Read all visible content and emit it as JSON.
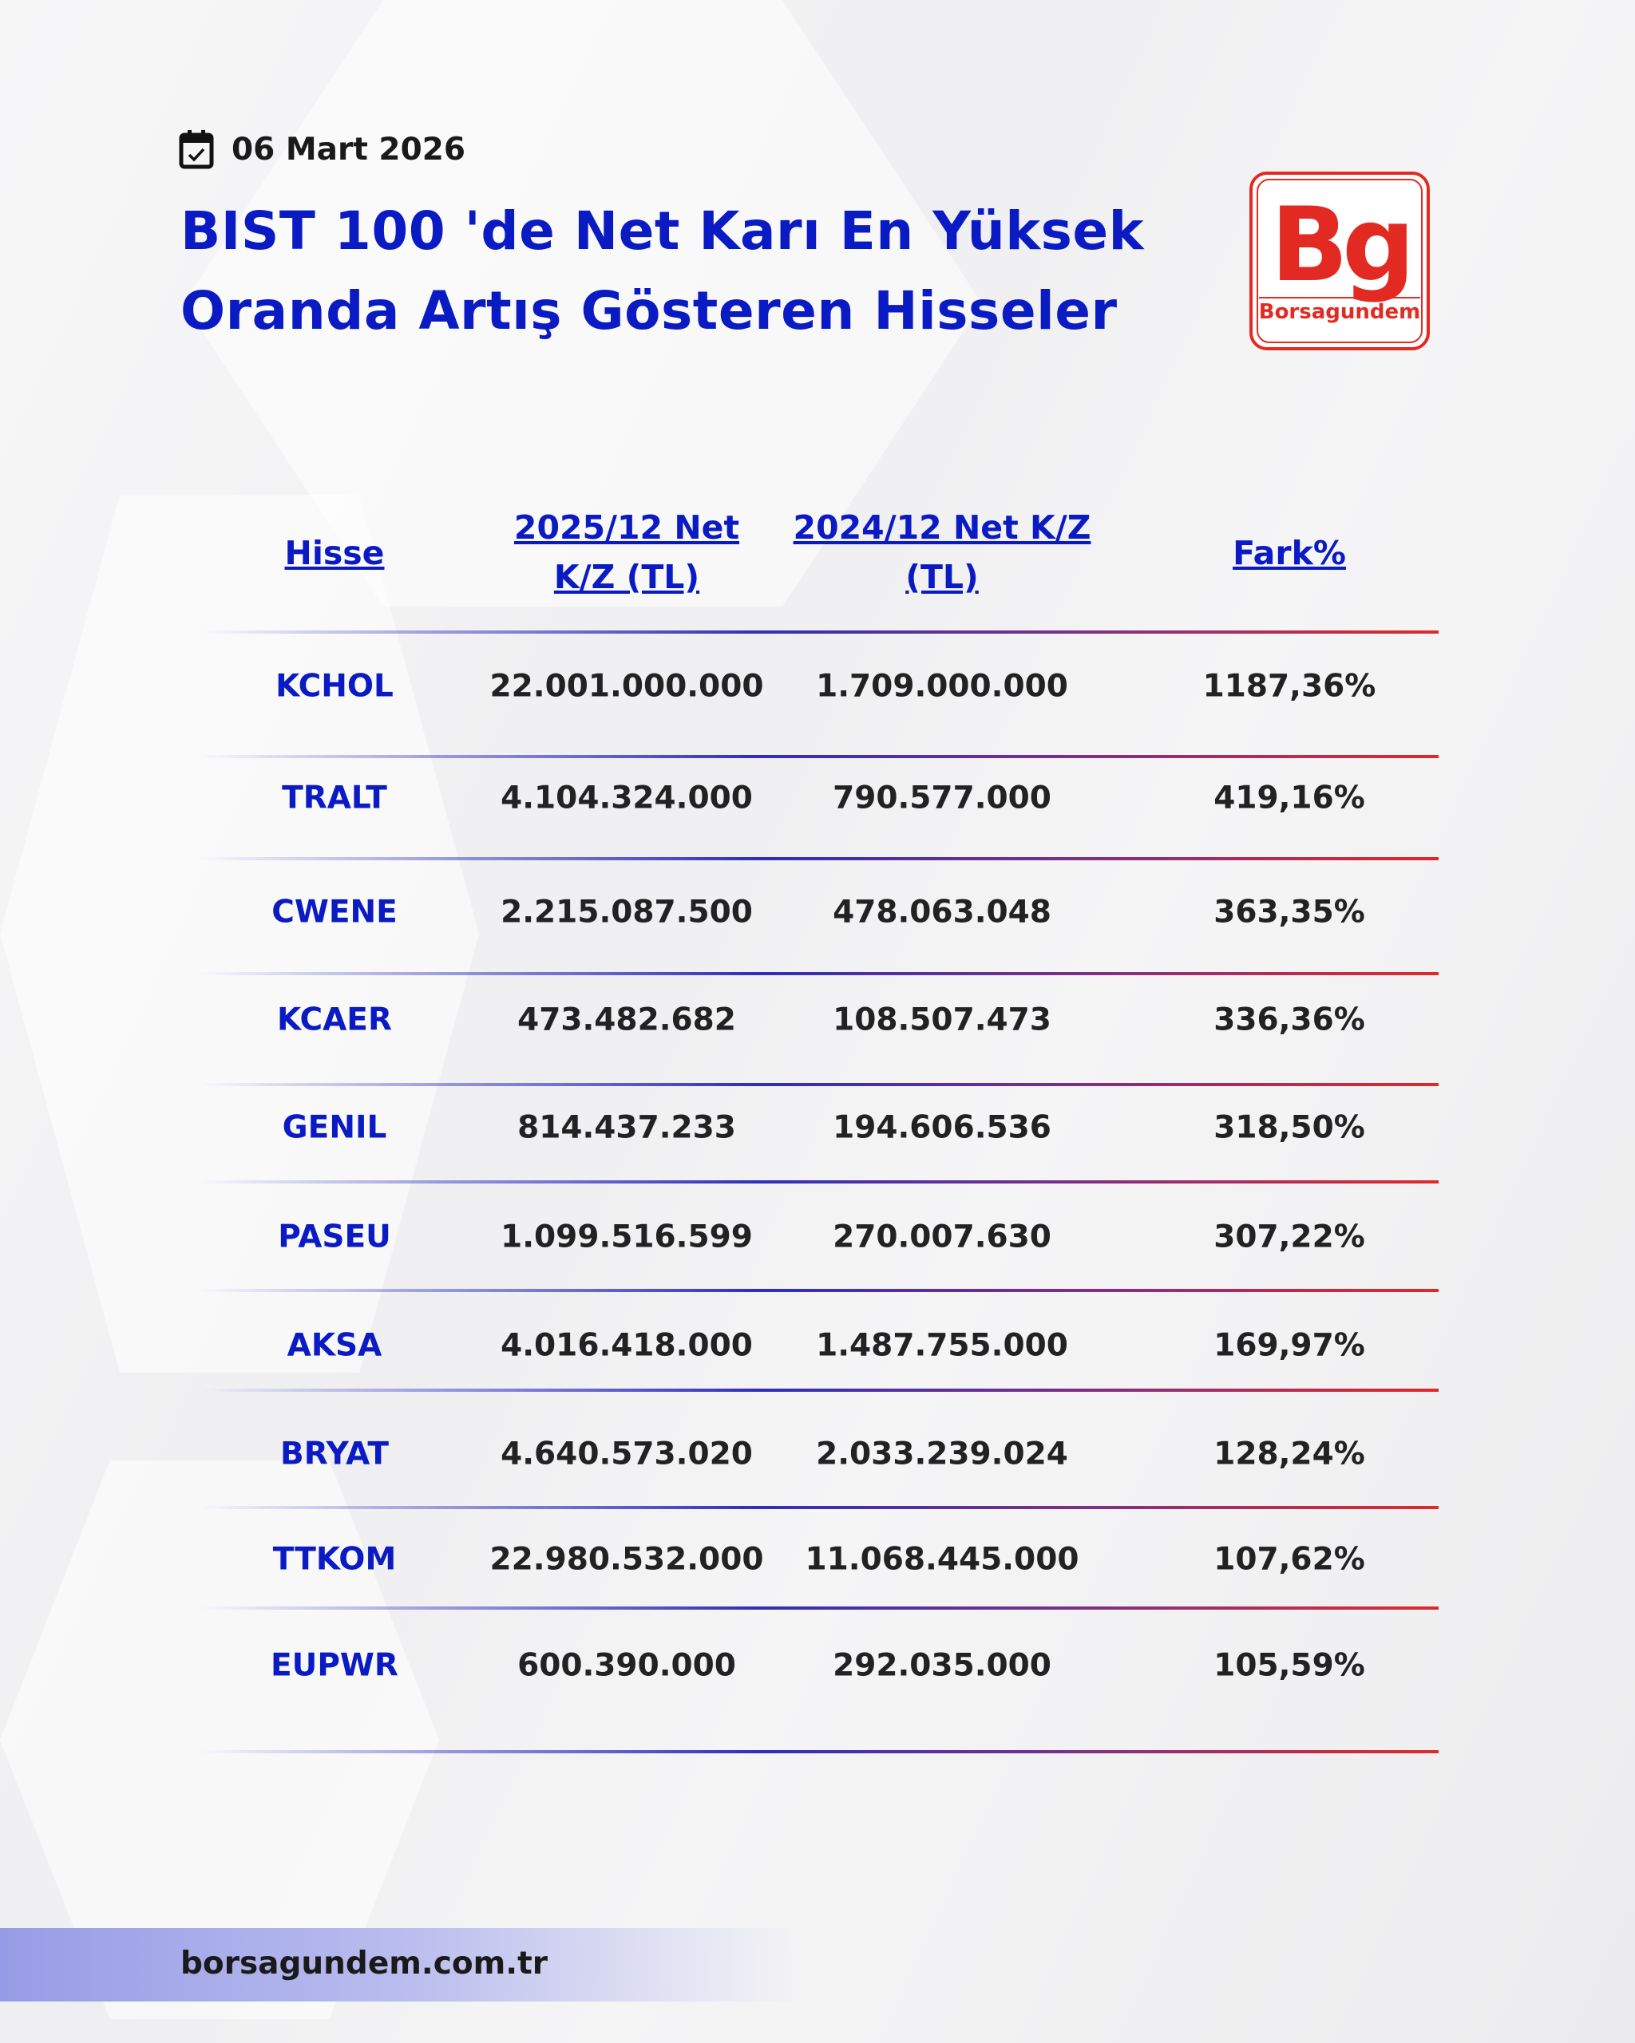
{
  "date": "06 Mart 2026",
  "title_line1": "BIST 100 'de Net Karı En Yüksek",
  "title_line2": "Oranda Artış Gösteren Hisseler",
  "logo": {
    "mark": "Bg",
    "name": "Borsagundem"
  },
  "colors": {
    "accent": "#0b1bc4",
    "brand": "#e32a22"
  },
  "icons": {
    "date": "calendar-check-icon"
  },
  "table": {
    "headers": [
      {
        "l1": "Hisse",
        "l2": ""
      },
      {
        "l1": "2025/12 Net",
        "l2": "K/Z (TL)"
      },
      {
        "l1": "2024/12 Net K/Z",
        "l2": "(TL)"
      },
      {
        "l1": "Fark%",
        "l2": ""
      }
    ],
    "rows": [
      [
        "KCHOL",
        "22.001.000.000",
        "1.709.000.000",
        "1187,36%"
      ],
      [
        "TRALT",
        "4.104.324.000",
        "790.577.000",
        "419,16%"
      ],
      [
        "CWENE",
        "2.215.087.500",
        "478.063.048",
        "363,35%"
      ],
      [
        "KCAER",
        "473.482.682",
        "108.507.473",
        "336,36%"
      ],
      [
        "GENIL",
        "814.437.233",
        "194.606.536",
        "318,50%"
      ],
      [
        "PASEU",
        "1.099.516.599",
        "270.007.630",
        "307,22%"
      ],
      [
        "AKSA",
        "4.016.418.000",
        "1.487.755.000",
        "169,97%"
      ],
      [
        "BRYAT",
        "4.640.573.020",
        "2.033.239.024",
        "128,24%"
      ],
      [
        "TTKOM",
        "22.980.532.000",
        "11.068.445.000",
        "107,62%"
      ],
      [
        "EUPWR",
        "600.390.000",
        "292.035.000",
        "105,59%"
      ]
    ]
  },
  "footer": "borsagundem.com.tr"
}
